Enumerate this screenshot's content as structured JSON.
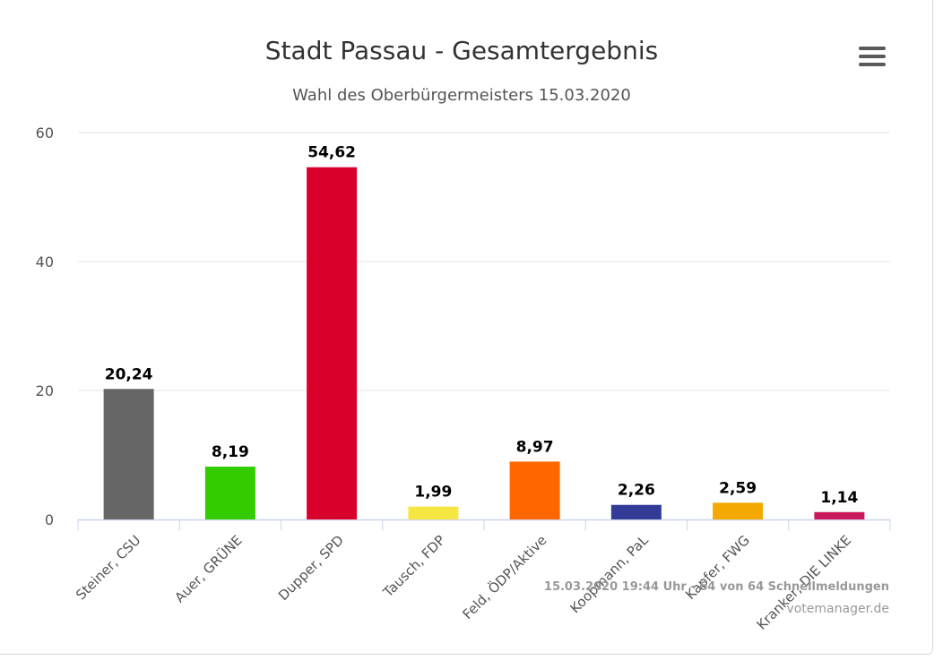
{
  "header": {
    "title": "Stadt Passau - Gesamtergebnis",
    "subtitle": "Wahl des Oberbürgermeisters 15.03.2020"
  },
  "menu": {
    "icon": "hamburger-menu-icon"
  },
  "credits": {
    "status": "15.03.2020 19:44 Uhr - 64 von 64 Schnellmeldungen",
    "source": "votemanager.de"
  },
  "chart_data": {
    "type": "bar",
    "title": "Stadt Passau - Gesamtergebnis",
    "subtitle": "Wahl des Oberbürgermeisters 15.03.2020",
    "categories": [
      "Steiner, CSU",
      "Auer, GRÜNE",
      "Dupper, SPD",
      "Tausch, FDP",
      "Feld, ÖDP/Aktive",
      "Koopmann, PaL",
      "Kapfer, FWG",
      "Kranker, DIE LINKE"
    ],
    "values": [
      20.24,
      8.19,
      54.62,
      1.99,
      8.97,
      2.26,
      2.59,
      1.14
    ],
    "labels": [
      "20,24",
      "8,19",
      "54,62",
      "1,99",
      "8,97",
      "2,26",
      "2,59",
      "1,14"
    ],
    "colors": [
      "#666666",
      "#33cc00",
      "#d9002c",
      "#f5e641",
      "#ff6600",
      "#323c96",
      "#f4a900",
      "#c8175a"
    ],
    "yticks": [
      0,
      20,
      40,
      60
    ],
    "ylim": [
      0,
      60
    ],
    "grid": true,
    "legend": "none"
  }
}
